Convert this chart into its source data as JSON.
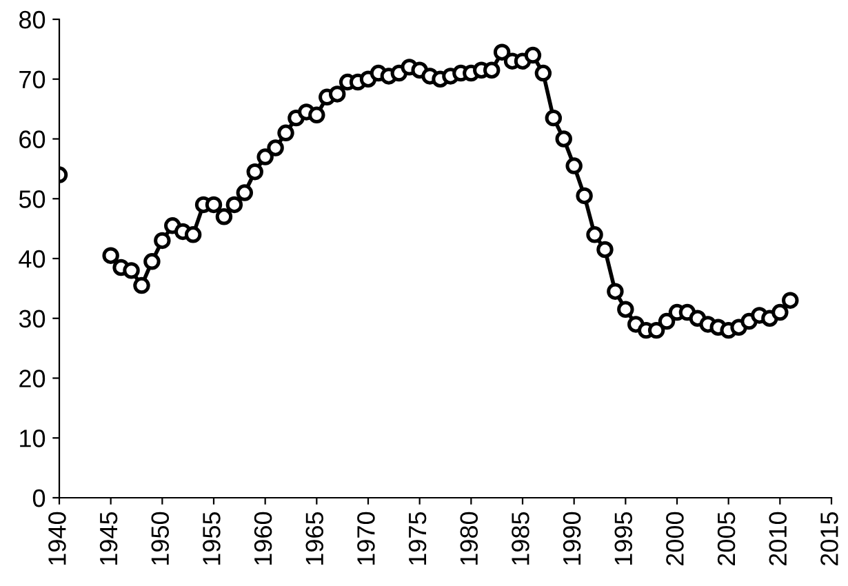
{
  "chart_data": {
    "type": "line",
    "x": [
      1940,
      1941,
      1942,
      1943,
      1944,
      1945,
      1946,
      1947,
      1948,
      1949,
      1950,
      1951,
      1952,
      1953,
      1954,
      1955,
      1956,
      1957,
      1958,
      1959,
      1960,
      1961,
      1962,
      1963,
      1964,
      1965,
      1966,
      1967,
      1968,
      1969,
      1970,
      1971,
      1972,
      1973,
      1974,
      1975,
      1976,
      1977,
      1978,
      1979,
      1980,
      1981,
      1982,
      1983,
      1984,
      1985,
      1986,
      1987,
      1988,
      1989,
      1990,
      1991,
      1992,
      1993,
      1994,
      1995,
      1996,
      1997,
      1998,
      1999,
      2000,
      2001,
      2002,
      2003,
      2004,
      2005,
      2006,
      2007,
      2008,
      2009,
      2010,
      2011
    ],
    "series": [
      {
        "color": "#000000",
        "values": [
          54,
          null,
          null,
          null,
          null,
          40.5,
          38.5,
          38,
          35.5,
          39.5,
          43,
          45.5,
          44.5,
          44,
          49,
          49,
          47,
          49,
          51,
          54.5,
          57,
          58.5,
          61,
          63.5,
          64.5,
          64,
          67,
          67.5,
          69.5,
          69.5,
          70,
          71,
          70.5,
          71,
          72,
          71.5,
          70.5,
          70,
          70.5,
          71,
          71,
          71.5,
          71.5,
          74.5,
          73,
          73,
          74,
          71,
          63.5,
          60,
          55.5,
          50.5,
          44,
          41.5,
          34.5,
          31.5,
          29,
          28,
          28,
          29.5,
          31,
          31,
          30,
          29,
          28.5,
          28,
          28.5,
          29.5,
          30.5,
          30,
          31,
          33
        ]
      }
    ],
    "xlim": [
      1940,
      2015
    ],
    "xticks": [
      1940,
      1945,
      1950,
      1955,
      1960,
      1965,
      1970,
      1975,
      1980,
      1985,
      1990,
      1995,
      2000,
      2005,
      2010,
      2015
    ],
    "ylim": [
      0,
      80
    ],
    "yticks": [
      0,
      10,
      20,
      30,
      40,
      50,
      60,
      70,
      80
    ],
    "marker": "circle",
    "line_style": "solid",
    "grid": false
  }
}
